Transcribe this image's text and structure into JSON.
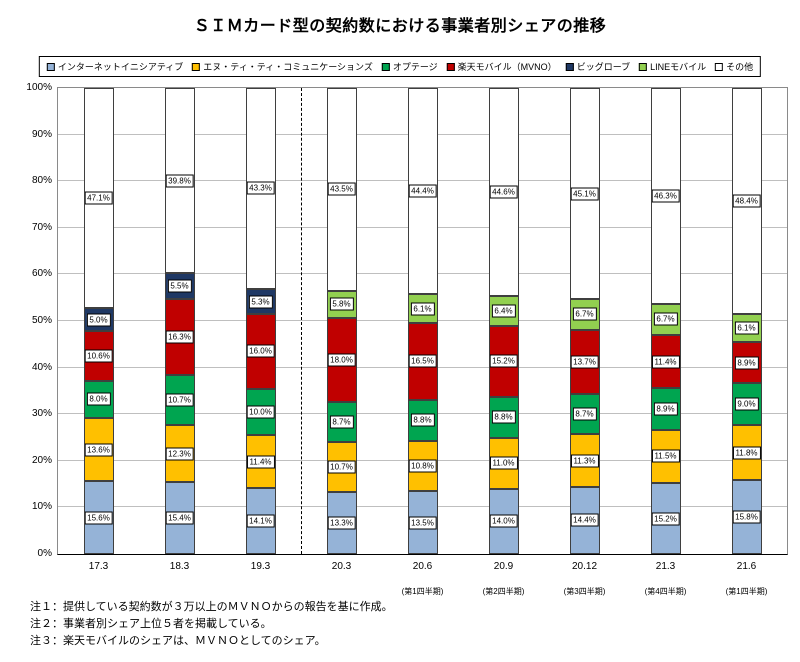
{
  "title": "ＳＩＭカード型の契約数における事業者別シェアの推移",
  "notes": [
    "注１：提供している契約数が３万以上のＭＶＮＯからの報告を基に作成。",
    "注２：事業者別シェア上位５者を掲載している。",
    "注３：楽天モバイルのシェアは、ＭＶＮＯとしてのシェア。"
  ],
  "chart_data": {
    "type": "bar",
    "stacked": true,
    "title": "ＳＩＭカード型の契約数における事業者別シェアの推移",
    "xlabel": "",
    "ylabel": "",
    "ylim": [
      0,
      100
    ],
    "ytick_step": 10,
    "ytick_suffix": "%",
    "grid": true,
    "legend_position": "top",
    "separator_after_category": "19.3",
    "categories": [
      "17.3",
      "18.3",
      "19.3",
      "20.3",
      "20.6",
      "20.9",
      "20.12",
      "21.3",
      "21.6"
    ],
    "category_sublabels": [
      "",
      "",
      "",
      "",
      "(第1四半期)",
      "(第2四半期)",
      "(第3四半期)",
      "(第4四半期)",
      "(第1四半期)"
    ],
    "series": [
      {
        "name": "インターネットイニシアティブ",
        "color": "#95B3D7",
        "values": [
          15.6,
          15.4,
          14.1,
          13.3,
          13.5,
          14.0,
          14.4,
          15.2,
          15.8
        ]
      },
      {
        "name": "エヌ・ティ・ティ・コミュニケーションズ",
        "color": "#FFC000",
        "values": [
          13.6,
          12.3,
          11.4,
          10.7,
          10.8,
          11.0,
          11.3,
          11.5,
          11.8
        ]
      },
      {
        "name": "オプテージ",
        "color": "#00A550",
        "values": [
          8.0,
          10.7,
          10.0,
          8.7,
          8.8,
          8.8,
          8.7,
          8.9,
          9.0
        ]
      },
      {
        "name": "楽天モバイル（MVNO）",
        "color": "#C00000",
        "values": [
          10.6,
          16.3,
          16.0,
          18.0,
          16.5,
          15.2,
          13.7,
          11.4,
          8.9
        ]
      },
      {
        "name": "ビッグローブ",
        "color": "#1F3864",
        "values": [
          5.0,
          5.5,
          5.3,
          null,
          null,
          null,
          null,
          null,
          null
        ]
      },
      {
        "name": "LINEモバイル",
        "color": "#92D050",
        "values": [
          null,
          null,
          null,
          5.8,
          6.1,
          6.4,
          6.7,
          6.7,
          6.1
        ]
      },
      {
        "name": "その他",
        "color": "#FFFFFF",
        "values": [
          47.1,
          39.8,
          43.3,
          43.5,
          44.4,
          44.6,
          45.1,
          46.3,
          48.4
        ]
      }
    ]
  }
}
